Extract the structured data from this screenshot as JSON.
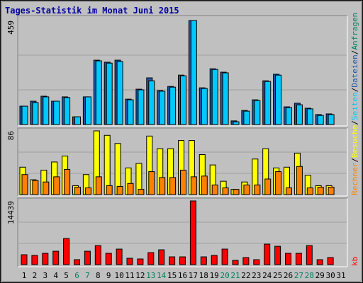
{
  "title": "Tages-Statistik im Monat Juni 2015",
  "separator": "/",
  "extra_label": {
    "text": "Anfragen",
    "color": "#008060"
  },
  "chart_data": [
    {
      "type": "bar",
      "ylim": [
        0,
        459
      ],
      "yticks": [
        459
      ],
      "series": [
        {
          "name": "Dateien",
          "color": "#1f56a8",
          "values": [
            81,
            103,
            125,
            103,
            122,
            34,
            122,
            284,
            275,
            284,
            112,
            156,
            206,
            150,
            168,
            218,
            459,
            162,
            246,
            231,
            16,
            62,
            109,
            193,
            222,
            78,
            94,
            72,
            44,
            47,
            0
          ]
        },
        {
          "name": "Seiten",
          "color": "#00c8ff",
          "values": [
            81,
            97,
            122,
            103,
            119,
            34,
            122,
            281,
            271,
            278,
            109,
            153,
            193,
            147,
            165,
            215,
            459,
            159,
            243,
            228,
            12,
            59,
            106,
            190,
            218,
            75,
            87,
            69,
            40,
            44,
            0
          ]
        }
      ]
    },
    {
      "type": "bar",
      "ylim": [
        0,
        86
      ],
      "yticks": [
        86
      ],
      "series": [
        {
          "name": "Besuche",
          "color": "#ffff00",
          "values": [
            37,
            20,
            33,
            44,
            52,
            12,
            27,
            86,
            80,
            69,
            36,
            42,
            79,
            62,
            62,
            73,
            73,
            54,
            40,
            18,
            7,
            17,
            48,
            62,
            36,
            37,
            56,
            26,
            12,
            12,
            0
          ]
        },
        {
          "name": "Rechner",
          "color": "#ff8000",
          "values": [
            27,
            19,
            17,
            24,
            34,
            10,
            9,
            24,
            12,
            11,
            15,
            7,
            31,
            23,
            23,
            33,
            24,
            25,
            13,
            9,
            7,
            13,
            13,
            21,
            31,
            9,
            38,
            9,
            10,
            10,
            0
          ]
        }
      ]
    },
    {
      "type": "bar",
      "ylim": [
        0,
        14439
      ],
      "yticks": [
        14439
      ],
      "categories": [
        "1",
        "2",
        "3",
        "4",
        "5",
        "6",
        "7",
        "8",
        "9",
        "10",
        "11",
        "12",
        "13",
        "14",
        "15",
        "16",
        "17",
        "18",
        "19",
        "20",
        "21",
        "22",
        "23",
        "24",
        "25",
        "26",
        "27",
        "28",
        "29",
        "30",
        "31"
      ],
      "category_colors": [
        "#000000",
        "#000000",
        "#000000",
        "#000000",
        "#000000",
        "#008060",
        "#008060",
        "#000000",
        "#000000",
        "#000000",
        "#000000",
        "#000000",
        "#008060",
        "#008060",
        "#000000",
        "#000000",
        "#000000",
        "#000000",
        "#000000",
        "#008060",
        "#008060",
        "#000000",
        "#000000",
        "#000000",
        "#000000",
        "#000000",
        "#008060",
        "#008060",
        "#000000",
        "#000000",
        "#000000"
      ],
      "series": [
        {
          "name": "kb",
          "color": "#ff0000",
          "values": [
            2240,
            2080,
            2560,
            3040,
            5920,
            1120,
            3040,
            4320,
            2560,
            3520,
            1440,
            1280,
            2720,
            3360,
            1760,
            1760,
            14439,
            1760,
            2080,
            3520,
            960,
            1600,
            1120,
            4640,
            4160,
            2560,
            2560,
            4320,
            1120,
            1600,
            0
          ]
        }
      ]
    }
  ]
}
